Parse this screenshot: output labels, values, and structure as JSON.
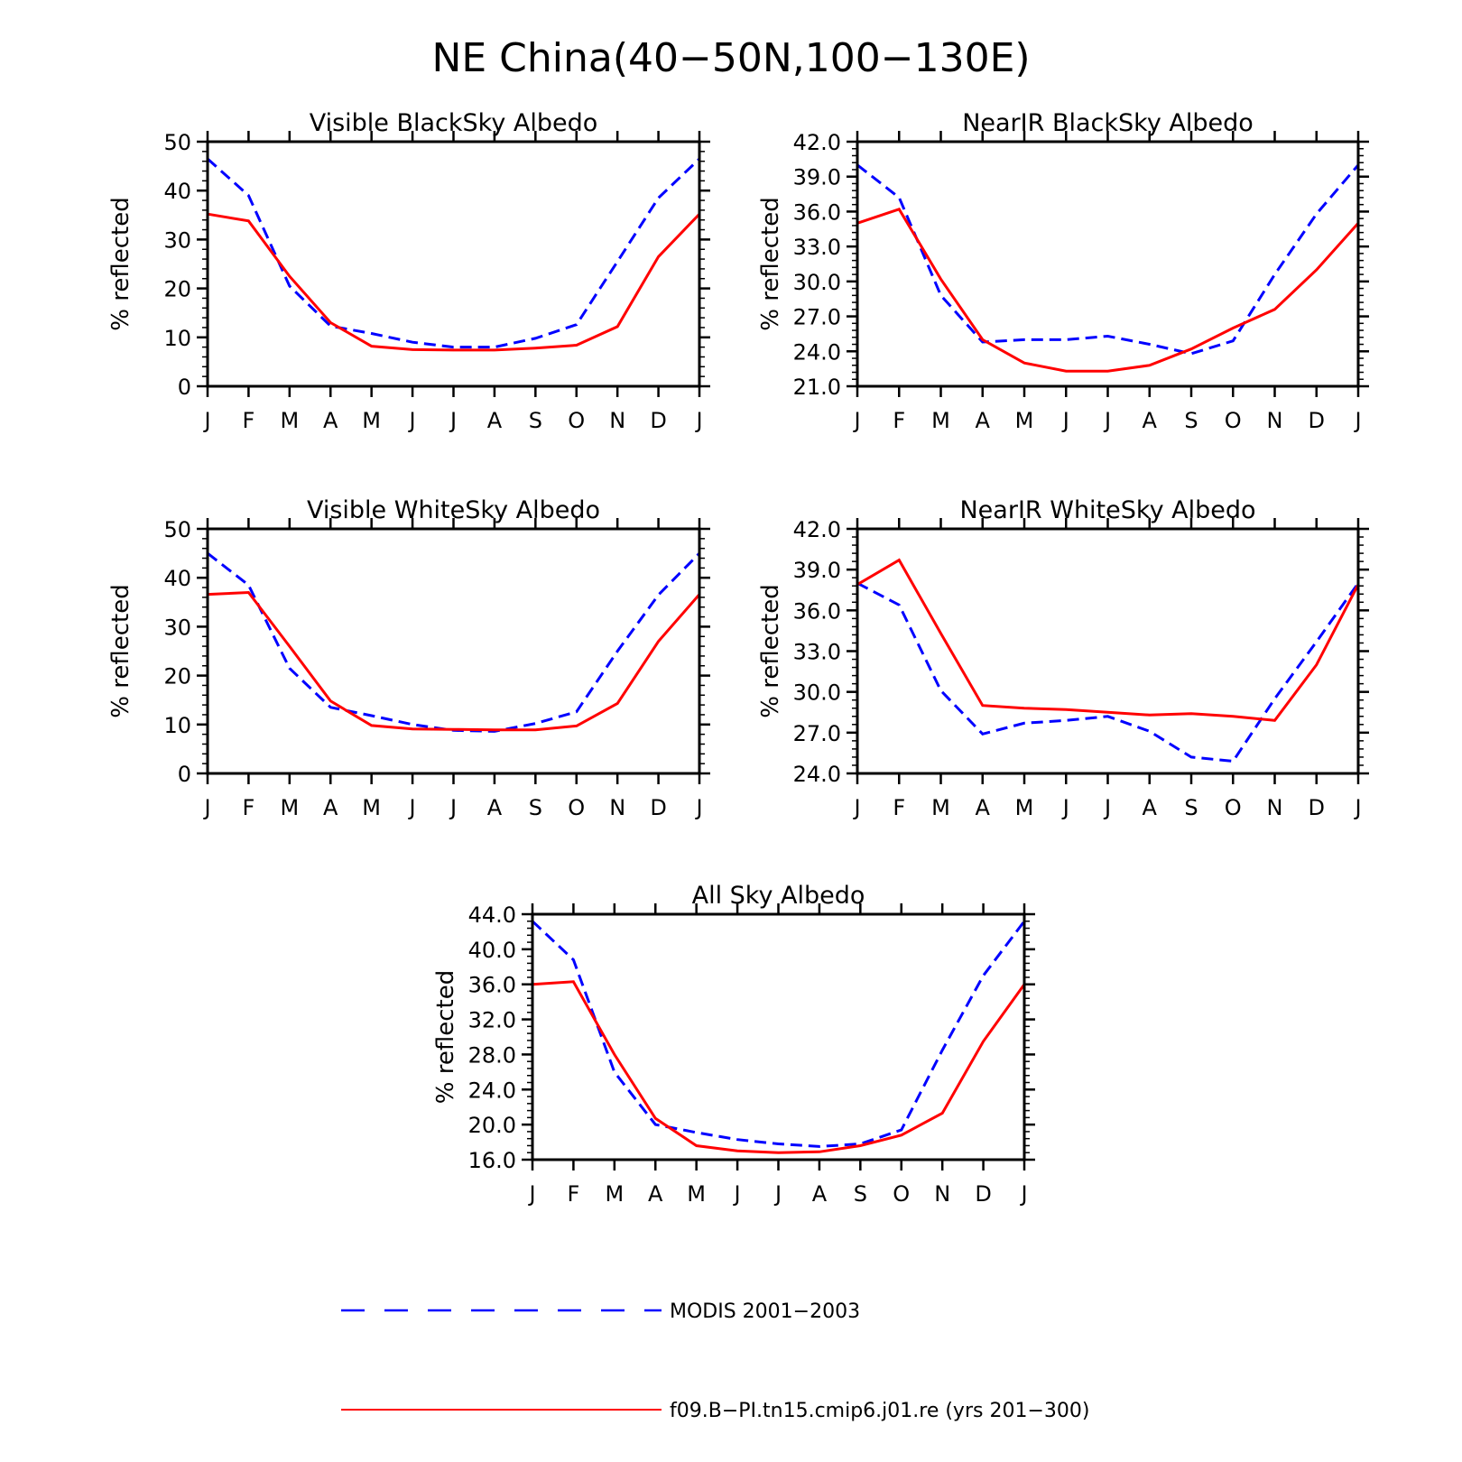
{
  "title": "NE China(40−50N,100−130E)",
  "colors": {
    "modis": "#0000ff",
    "model": "#ff0000",
    "axis": "#000000"
  },
  "legend": [
    {
      "key": "modis",
      "label": "MODIS 2001−2003",
      "style": "dashed"
    },
    {
      "key": "model",
      "label": "f09.B−PI.tn15.cmip6.j01.re (yrs 201−300)",
      "style": "solid"
    }
  ],
  "chart_data": [
    {
      "type": "line",
      "title": "Visible BlackSky Albedo",
      "ylabel": "% reflected",
      "categories": [
        "J",
        "F",
        "M",
        "A",
        "M",
        "J",
        "J",
        "A",
        "S",
        "O",
        "N",
        "D",
        "J"
      ],
      "ylim": [
        0,
        50
      ],
      "yticks": [
        "0",
        "10",
        "20",
        "30",
        "40",
        "50"
      ],
      "series": [
        {
          "key": "modis",
          "values": [
            46.5,
            39.0,
            20.5,
            12.3,
            10.8,
            9.0,
            8.0,
            8.0,
            9.8,
            12.6,
            25.5,
            38.5,
            46.5
          ]
        },
        {
          "key": "model",
          "values": [
            35.2,
            33.8,
            22.5,
            13.0,
            8.2,
            7.5,
            7.4,
            7.4,
            7.8,
            8.4,
            12.2,
            26.5,
            35.2
          ]
        }
      ]
    },
    {
      "type": "line",
      "title": "NearIR BlackSky Albedo",
      "ylabel": "% reflected",
      "categories": [
        "J",
        "F",
        "M",
        "A",
        "M",
        "J",
        "J",
        "A",
        "S",
        "O",
        "N",
        "D",
        "J"
      ],
      "ylim": [
        21.0,
        42.0
      ],
      "yticks": [
        "21.0",
        "24.0",
        "27.0",
        "30.0",
        "33.0",
        "36.0",
        "39.0",
        "42.0"
      ],
      "series": [
        {
          "key": "modis",
          "values": [
            40.0,
            37.2,
            28.8,
            24.8,
            25.0,
            25.0,
            25.3,
            24.6,
            23.8,
            24.9,
            30.6,
            35.8,
            40.0
          ]
        },
        {
          "key": "model",
          "values": [
            35.0,
            36.2,
            30.2,
            25.0,
            23.0,
            22.3,
            22.3,
            22.8,
            24.2,
            26.0,
            27.6,
            31.0,
            35.0
          ]
        }
      ]
    },
    {
      "type": "line",
      "title": "Visible WhiteSky Albedo",
      "ylabel": "% reflected",
      "categories": [
        "J",
        "F",
        "M",
        "A",
        "M",
        "J",
        "J",
        "A",
        "S",
        "O",
        "N",
        "D",
        "J"
      ],
      "ylim": [
        0,
        50
      ],
      "yticks": [
        "0",
        "10",
        "20",
        "30",
        "40",
        "50"
      ],
      "series": [
        {
          "key": "modis",
          "values": [
            45.0,
            38.5,
            21.5,
            13.5,
            11.8,
            10.0,
            8.8,
            8.6,
            10.2,
            12.6,
            25.0,
            36.5,
            45.0
          ]
        },
        {
          "key": "model",
          "values": [
            36.6,
            37.0,
            26.0,
            14.8,
            9.8,
            9.1,
            9.0,
            8.9,
            8.9,
            9.7,
            14.3,
            27.0,
            36.6
          ]
        }
      ]
    },
    {
      "type": "line",
      "title": "NearIR WhiteSky Albedo",
      "ylabel": "% reflected",
      "categories": [
        "J",
        "F",
        "M",
        "A",
        "M",
        "J",
        "J",
        "A",
        "S",
        "O",
        "N",
        "D",
        "J"
      ],
      "ylim": [
        24.0,
        42.0
      ],
      "yticks": [
        "24.0",
        "27.0",
        "30.0",
        "33.0",
        "36.0",
        "39.0",
        "42.0"
      ],
      "series": [
        {
          "key": "modis",
          "values": [
            38.0,
            36.4,
            30.1,
            26.9,
            27.7,
            27.9,
            28.2,
            27.1,
            25.2,
            24.9,
            29.5,
            33.7,
            38.0
          ]
        },
        {
          "key": "model",
          "values": [
            37.9,
            39.7,
            34.3,
            29.0,
            28.8,
            28.7,
            28.5,
            28.3,
            28.4,
            28.2,
            27.9,
            32.0,
            37.9
          ]
        }
      ]
    },
    {
      "type": "line",
      "title": "All Sky Albedo",
      "ylabel": "% reflected",
      "categories": [
        "J",
        "F",
        "M",
        "A",
        "M",
        "J",
        "J",
        "A",
        "S",
        "O",
        "N",
        "D",
        "J"
      ],
      "ylim": [
        16.0,
        44.0
      ],
      "yticks": [
        "16.0",
        "20.0",
        "24.0",
        "28.0",
        "32.0",
        "36.0",
        "40.0",
        "44.0"
      ],
      "series": [
        {
          "key": "modis",
          "values": [
            43.2,
            38.8,
            26.0,
            20.0,
            19.1,
            18.3,
            17.8,
            17.5,
            17.8,
            19.4,
            28.5,
            37.0,
            43.2
          ]
        },
        {
          "key": "model",
          "values": [
            36.0,
            36.3,
            28.0,
            20.7,
            17.6,
            17.0,
            16.8,
            16.9,
            17.6,
            18.8,
            21.3,
            29.5,
            36.0
          ]
        }
      ]
    }
  ]
}
